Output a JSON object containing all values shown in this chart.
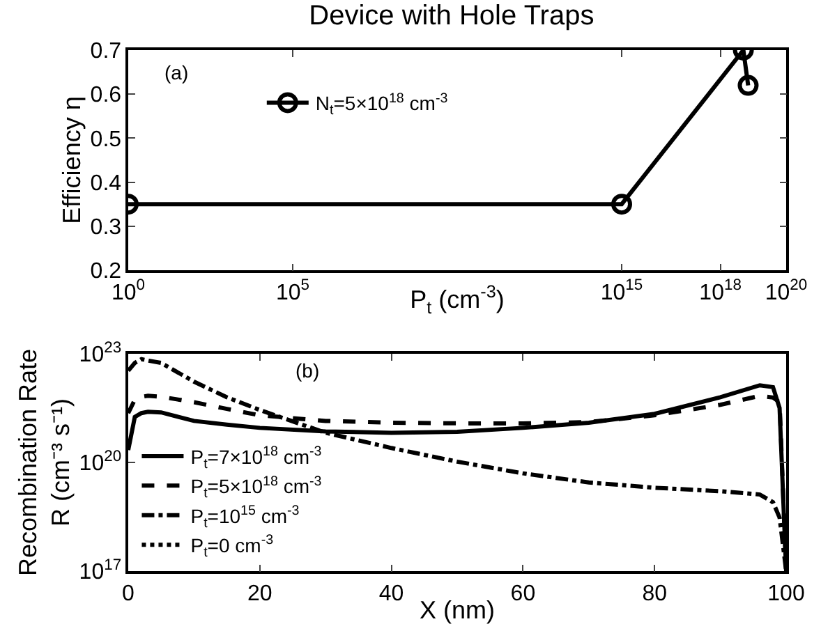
{
  "chart_data": [
    {
      "type": "line",
      "title": "Device with Hole Traps",
      "xlabel": "P$_{t}$ (cm$^{-3}$)",
      "ylabel": "Efficiency η",
      "annotations": [
        "(a)"
      ],
      "x": [
        1,
        1000000000000000.0,
        5e+18,
        7e+18
      ],
      "series": [
        {
          "name": "N$_{t}$=5×10$^{18}$ cm$^{-3}$",
          "color": "#000000",
          "values": [
            0.35,
            0.35,
            0.7,
            0.62
          ]
        }
      ],
      "log": "x",
      "xlim": [
        1,
        1e+20
      ],
      "xticks": [
        {
          "value": 1,
          "label": "10$^{0}$"
        },
        {
          "value": 100000.0,
          "label": "10$^{5}$"
        },
        {
          "value": 1000000000000000.0,
          "label": "10$^{15}$"
        },
        {
          "value": 1e+18,
          "label": "10$^{18}$"
        },
        {
          "value": 1e+20,
          "label": "10$^{20}$"
        }
      ],
      "ylim": [
        0.2,
        0.7
      ],
      "yticks": [
        0.2,
        0.3,
        0.4,
        0.5,
        0.6,
        0.7
      ],
      "grid": false,
      "legend": "top left",
      "marker": "circle",
      "line_style": "solid"
    },
    {
      "type": "line",
      "xlabel": "X (nm)",
      "ylabel": "Recombination Rate R (cm⁻³ s⁻¹)",
      "annotations": [
        "(b)"
      ],
      "x": [
        0,
        1,
        2,
        3,
        5,
        10,
        15,
        20,
        30,
        40,
        50,
        60,
        70,
        80,
        90,
        96,
        98,
        99,
        100
      ],
      "series": [
        {
          "name": "P$_{t}$=0 cm$^{-3}$",
          "color": "#000000",
          "line_style": "dotted",
          "values": [
            null,
            null,
            null,
            null,
            null,
            null,
            null,
            null,
            null,
            null,
            null,
            null,
            null,
            null,
            null,
            null,
            null,
            null,
            null
          ]
        },
        {
          "name": "P$_{t}$=10$^{15}$ cm$^{-3}$",
          "color": "#000000",
          "line_style": "dashdot",
          "values": [
            3.4e+22,
            5.6e+22,
            7.1e+22,
            6.5e+22,
            5.6e+22,
            1.7e+22,
            6.3e+21,
            2.8e+21,
            6.6e+20,
            2.5e+20,
            1.05e+20,
            5e+19,
            2.8e+19,
            2e+19,
            1.6e+19,
            1.3e+19,
            8e+18,
            3e+18,
            1e+17
          ]
        },
        {
          "name": "P$_{t}$=5×10$^{18}$ cm$^{-3}$",
          "color": "#000000",
          "line_style": "dashed",
          "values": [
            2.3e+21,
            5.4e+21,
            6.5e+21,
            6.9e+21,
            6.5e+21,
            4.6e+21,
            3e+21,
            2e+21,
            1.4e+21,
            1.25e+21,
            1.2e+21,
            1.2e+21,
            1.3e+21,
            2e+21,
            3.9e+21,
            6.9e+21,
            6.2e+21,
            4.6e+21,
            1e+17
          ]
        },
        {
          "name": "P$_{t}$=7×10$^{18}$ cm$^{-3}$",
          "color": "#000000",
          "line_style": "solid",
          "values": [
            2.2e+20,
            1.8e+21,
            2.3e+21,
            2.5e+21,
            2.4e+21,
            1.4e+21,
            1.1e+21,
            9e+20,
            7.2e+20,
            6.6e+20,
            7e+20,
            9e+20,
            1.25e+21,
            2.2e+21,
            6.3e+21,
            1.35e+22,
            1.2e+22,
            3.2e+21,
            1e+17
          ]
        }
      ],
      "log": "y",
      "xlim": [
        0,
        100
      ],
      "xticks": [
        0,
        20,
        40,
        60,
        80,
        100
      ],
      "ylim": [
        1e+17,
        1e+23
      ],
      "yticks": [
        {
          "value": 1e+17,
          "label": "10$^{17}$"
        },
        {
          "value": 1e+20,
          "label": "10$^{20}$"
        },
        {
          "value": 1e+23,
          "label": "10$^{23}$"
        }
      ],
      "grid": false,
      "legend": "bottom left",
      "marker": "none"
    }
  ]
}
